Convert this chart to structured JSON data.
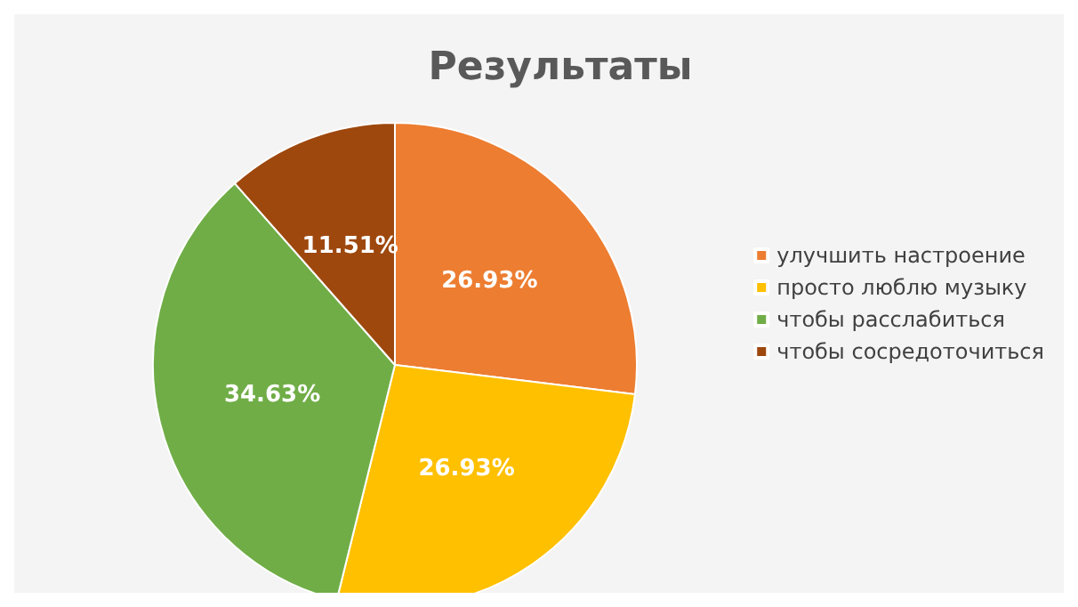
{
  "chart_data": {
    "type": "pie",
    "title": "Результаты",
    "categories": [
      "улучшить настроение",
      "просто люблю музыку",
      "чтобы расслабиться",
      "чтобы сосредоточиться"
    ],
    "values": [
      26.93,
      26.93,
      34.63,
      11.51
    ],
    "colors": [
      "#ed7d31",
      "#ffc000",
      "#70ad47",
      "#9e480e"
    ],
    "value_labels": [
      "26.93%",
      "26.93%",
      "34.63%",
      "11.51%"
    ],
    "legend": "right"
  }
}
